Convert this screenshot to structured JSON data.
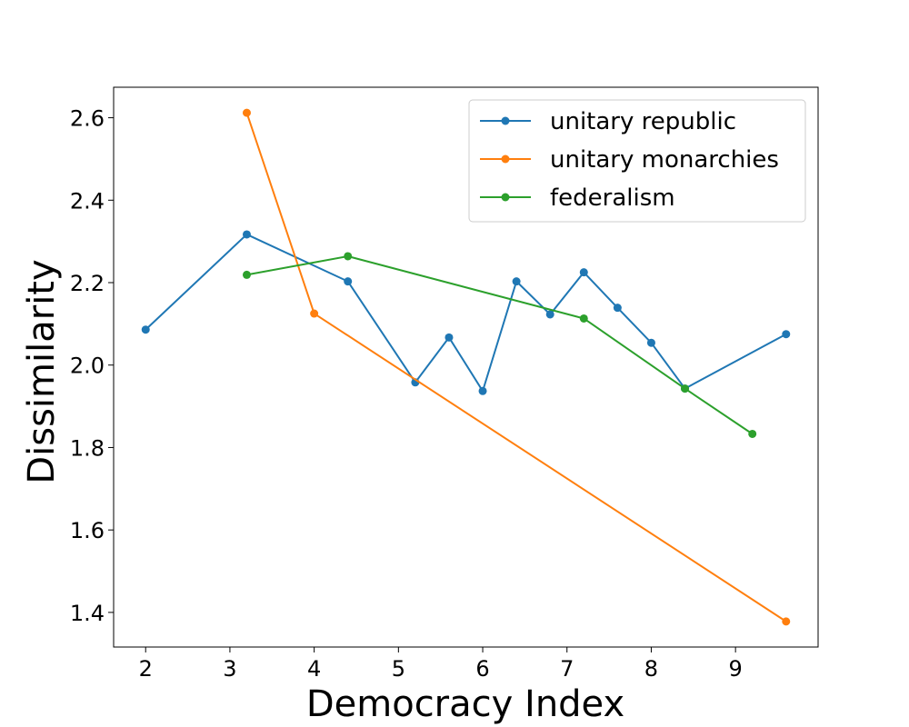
{
  "chart_data": {
    "type": "line",
    "title": "",
    "xlabel": "Democracy Index",
    "ylabel": "Dissimilarity",
    "xlim": [
      1.62,
      9.98
    ],
    "ylim": [
      1.316,
      2.674
    ],
    "xticks": [
      2,
      3,
      4,
      5,
      6,
      7,
      8,
      9
    ],
    "yticks": [
      1.4,
      1.6,
      1.8,
      2.0,
      2.2,
      2.4,
      2.6
    ],
    "xtick_labels": [
      "2",
      "3",
      "4",
      "5",
      "6",
      "7",
      "8",
      "9"
    ],
    "ytick_labels": [
      "1.4",
      "1.6",
      "1.8",
      "2.0",
      "2.2",
      "2.4",
      "2.6"
    ],
    "grid": false,
    "legend_position": "upper right",
    "series": [
      {
        "name": "unitary republic",
        "color": "#1f77b4",
        "x": [
          2.0,
          3.2,
          4.4,
          5.2,
          5.6,
          6.0,
          6.4,
          6.8,
          7.2,
          7.6,
          8.0,
          8.4,
          9.6
        ],
        "y": [
          2.086,
          2.317,
          2.203,
          1.958,
          2.067,
          1.937,
          2.203,
          2.123,
          2.225,
          2.139,
          2.054,
          1.943,
          2.075
        ]
      },
      {
        "name": "unitary monarchies",
        "color": "#ff7f0e",
        "x": [
          3.2,
          4.0,
          9.6
        ],
        "y": [
          2.612,
          2.125,
          1.378
        ]
      },
      {
        "name": "federalism",
        "color": "#2ca02c",
        "x": [
          3.2,
          4.4,
          7.2,
          8.4,
          9.2
        ],
        "y": [
          2.219,
          2.264,
          2.113,
          1.943,
          1.833
        ]
      }
    ]
  }
}
